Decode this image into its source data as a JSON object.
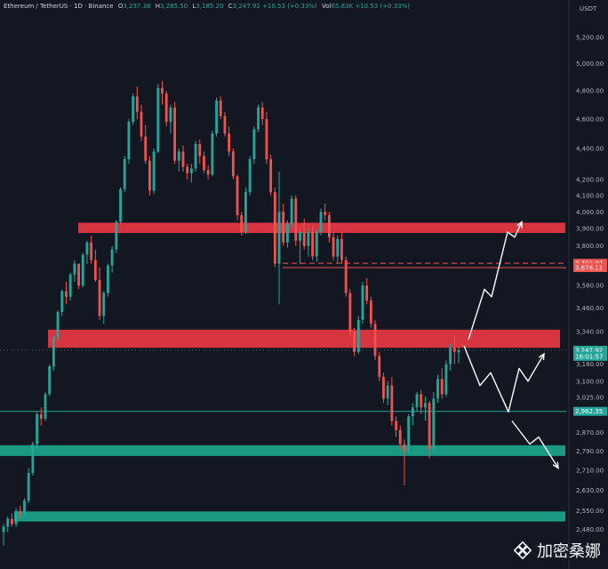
{
  "header": {
    "symbol": "Ethereum / TetherUS · 1D · Binance",
    "o_label": "O",
    "o_value": "3,237.38",
    "h_label": "H",
    "h_value": "3,265.50",
    "l_label": "L",
    "l_value": "3,185.20",
    "c_label": "C",
    "c_value": "3,247.92",
    "change": "+10.53 (+0.33%)",
    "vol_label": "Vol",
    "vol_value": "65.83K",
    "vol_change": "+10.53 (+0.33%)"
  },
  "currency": "USDT",
  "watermark": "加密桑娜",
  "colors": {
    "background": "#131722",
    "up": "#26a69a",
    "down": "#ef5350",
    "resistance_zone": "#d6343f",
    "support_zone": "#1a9a82",
    "axis_text": "#b2b5be",
    "arrow": "#ffffff"
  },
  "chart_data": {
    "type": "candlestick",
    "ylim": [
      2400,
      5300
    ],
    "y_scale": "log",
    "y_ticks": [
      "5,200.00",
      "5,000.00",
      "4,800.00",
      "4,600.00",
      "4,400.00",
      "4,200.00",
      "4,100.00",
      "4,000.00",
      "3,900.00",
      "3,800.00",
      "3,580.00",
      "3,460.00",
      "3,340.00",
      "3,180.00",
      "3,100.00",
      "3,025.00",
      "2,870.00",
      "2,790.00",
      "2,710.00",
      "2,630.00",
      "2,550.00",
      "2,480.00"
    ],
    "price_labels": [
      {
        "text": "3,702.07",
        "value": 3702.07,
        "color": "#ef5350"
      },
      {
        "text": "3,678.11",
        "value": 3678.11,
        "color": "#ef5350"
      },
      {
        "text": "3,247.92",
        "value": 3247.92,
        "color": "#26a69a"
      },
      {
        "text": "16:01:57",
        "value": 3218,
        "color": "#26a69a"
      },
      {
        "text": "2,962.35",
        "value": 2962.35,
        "color": "#26a69a"
      }
    ],
    "zones": [
      {
        "name": "resistance-upper",
        "low": 3875,
        "high": 3935
      },
      {
        "name": "resistance-lower",
        "low": 3260,
        "high": 3350
      },
      {
        "name": "support-upper",
        "low": 2770,
        "high": 2815
      },
      {
        "name": "support-lower",
        "low": 2510,
        "high": 2548
      }
    ],
    "hlines": [
      {
        "value": 3702.07,
        "style": "dashed",
        "color": "#ef5350"
      },
      {
        "value": 3678.11,
        "style": "solid",
        "color": "#ef5350"
      },
      {
        "value": 2962.35,
        "style": "solid",
        "color": "#26a69a"
      },
      {
        "value": 3247.92,
        "style": "dotted",
        "color": "#26a69a"
      }
    ],
    "scenarios": [
      {
        "name": "bullish-path",
        "points": [
          [
            0,
            3300
          ],
          [
            18,
            3560
          ],
          [
            26,
            3520
          ],
          [
            44,
            3880
          ],
          [
            52,
            3850
          ],
          [
            60,
            3940
          ]
        ]
      },
      {
        "name": "range-path",
        "points": [
          [
            0,
            3270
          ],
          [
            18,
            3080
          ],
          [
            30,
            3140
          ],
          [
            50,
            2960
          ],
          [
            62,
            3160
          ],
          [
            72,
            3100
          ],
          [
            90,
            3230
          ]
        ]
      },
      {
        "name": "bearish-path",
        "points": [
          [
            0,
            2920
          ],
          [
            20,
            2820
          ],
          [
            30,
            2850
          ],
          [
            52,
            2720
          ]
        ]
      }
    ],
    "candles": [
      [
        2470,
        2500,
        2420,
        2490
      ],
      [
        2490,
        2530,
        2470,
        2520
      ],
      [
        2520,
        2540,
        2490,
        2500
      ],
      [
        2500,
        2560,
        2490,
        2550
      ],
      [
        2550,
        2570,
        2520,
        2540
      ],
      [
        2540,
        2600,
        2530,
        2590
      ],
      [
        2590,
        2720,
        2580,
        2700
      ],
      [
        2700,
        2830,
        2690,
        2820
      ],
      [
        2820,
        2960,
        2800,
        2950
      ],
      [
        2950,
        2980,
        2900,
        2930
      ],
      [
        2930,
        3050,
        2920,
        3040
      ],
      [
        3040,
        3180,
        3030,
        3170
      ],
      [
        3170,
        3320,
        3150,
        3310
      ],
      [
        3310,
        3450,
        3290,
        3440
      ],
      [
        3440,
        3560,
        3420,
        3550
      ],
      [
        3550,
        3600,
        3480,
        3520
      ],
      [
        3520,
        3650,
        3500,
        3640
      ],
      [
        3640,
        3720,
        3600,
        3700
      ],
      [
        3700,
        3690,
        3560,
        3580
      ],
      [
        3580,
        3760,
        3570,
        3750
      ],
      [
        3750,
        3830,
        3700,
        3820
      ],
      [
        3820,
        3860,
        3700,
        3720
      ],
      [
        3720,
        3780,
        3600,
        3610
      ],
      [
        3610,
        3680,
        3400,
        3420
      ],
      [
        3420,
        3550,
        3380,
        3540
      ],
      [
        3540,
        3700,
        3520,
        3690
      ],
      [
        3690,
        3800,
        3650,
        3780
      ],
      [
        3780,
        3950,
        3760,
        3940
      ],
      [
        3940,
        4150,
        3920,
        4140
      ],
      [
        4140,
        4350,
        4120,
        4330
      ],
      [
        4330,
        4600,
        4300,
        4580
      ],
      [
        4580,
        4780,
        4560,
        4760
      ],
      [
        4760,
        4830,
        4600,
        4650
      ],
      [
        4650,
        4700,
        4450,
        4480
      ],
      [
        4480,
        4560,
        4300,
        4320
      ],
      [
        4320,
        4350,
        4100,
        4130
      ],
      [
        4130,
        4400,
        4110,
        4380
      ],
      [
        4380,
        4850,
        4370,
        4820
      ],
      [
        4820,
        4870,
        4700,
        4780
      ],
      [
        4780,
        4800,
        4550,
        4580
      ],
      [
        4580,
        4700,
        4500,
        4680
      ],
      [
        4680,
        4720,
        4300,
        4320
      ],
      [
        4320,
        4400,
        4250,
        4380
      ],
      [
        4380,
        4420,
        4250,
        4280
      ],
      [
        4280,
        4300,
        4200,
        4240
      ],
      [
        4240,
        4300,
        4180,
        4270
      ],
      [
        4270,
        4450,
        4250,
        4430
      ],
      [
        4430,
        4460,
        4300,
        4350
      ],
      [
        4350,
        4380,
        4240,
        4260
      ],
      [
        4260,
        4290,
        4200,
        4230
      ],
      [
        4230,
        4520,
        4220,
        4500
      ],
      [
        4500,
        4750,
        4480,
        4730
      ],
      [
        4730,
        4760,
        4600,
        4620
      ],
      [
        4620,
        4650,
        4480,
        4500
      ],
      [
        4500,
        4550,
        4350,
        4380
      ],
      [
        4380,
        4400,
        4200,
        4220
      ],
      [
        4220,
        4230,
        3950,
        3980
      ],
      [
        3980,
        4000,
        3860,
        3880
      ],
      [
        3880,
        4150,
        3870,
        4120
      ],
      [
        4120,
        4350,
        4100,
        4330
      ],
      [
        4330,
        4550,
        4300,
        4530
      ],
      [
        4530,
        4700,
        4510,
        4680
      ],
      [
        4680,
        4720,
        4560,
        4600
      ],
      [
        4600,
        4650,
        4300,
        4330
      ],
      [
        4330,
        4360,
        4100,
        4120
      ],
      [
        4120,
        4150,
        3680,
        3700
      ],
      [
        3700,
        4250,
        3480,
        4000
      ],
      [
        4000,
        4050,
        3800,
        3820
      ],
      [
        3820,
        3950,
        3790,
        3930
      ],
      [
        3930,
        4100,
        3900,
        4080
      ],
      [
        4080,
        4100,
        3800,
        3830
      ],
      [
        3830,
        3900,
        3700,
        3880
      ],
      [
        3880,
        3960,
        3780,
        3800
      ],
      [
        3800,
        3900,
        3740,
        3880
      ],
      [
        3880,
        3920,
        3720,
        3740
      ],
      [
        3740,
        3900,
        3710,
        3880
      ],
      [
        3880,
        4020,
        3860,
        4000
      ],
      [
        4000,
        4050,
        3950,
        3980
      ],
      [
        3980,
        4000,
        3820,
        3850
      ],
      [
        3850,
        3880,
        3720,
        3740
      ],
      [
        3740,
        3860,
        3700,
        3840
      ],
      [
        3840,
        3880,
        3700,
        3720
      ],
      [
        3720,
        3740,
        3520,
        3540
      ],
      [
        3540,
        3560,
        3320,
        3340
      ],
      [
        3340,
        3360,
        3220,
        3240
      ],
      [
        3240,
        3420,
        3230,
        3400
      ],
      [
        3400,
        3600,
        3380,
        3580
      ],
      [
        3580,
        3620,
        3480,
        3500
      ],
      [
        3500,
        3520,
        3360,
        3380
      ],
      [
        3380,
        3400,
        3200,
        3220
      ],
      [
        3220,
        3240,
        3100,
        3120
      ],
      [
        3120,
        3140,
        3000,
        3020
      ],
      [
        3020,
        3100,
        2990,
        3080
      ],
      [
        3080,
        3120,
        2900,
        2920
      ],
      [
        2920,
        2940,
        2850,
        2880
      ],
      [
        2880,
        2900,
        2800,
        2820
      ],
      [
        2820,
        2840,
        2650,
        2790
      ],
      [
        2790,
        2950,
        2780,
        2940
      ],
      [
        2940,
        3000,
        2900,
        2980
      ],
      [
        2980,
        3050,
        2960,
        3040
      ],
      [
        3040,
        3060,
        2950,
        2980
      ],
      [
        2980,
        3030,
        2920,
        3000
      ],
      [
        3000,
        3010,
        2760,
        2800
      ],
      [
        2800,
        3050,
        2780,
        3020
      ],
      [
        3020,
        3130,
        3000,
        3110
      ],
      [
        3110,
        3160,
        3020,
        3040
      ],
      [
        3040,
        3200,
        3030,
        3180
      ],
      [
        3180,
        3280,
        3150,
        3260
      ],
      [
        3260,
        3320,
        3180,
        3240
      ],
      [
        3237.38,
        3265.5,
        3185.2,
        3247.92
      ]
    ]
  }
}
